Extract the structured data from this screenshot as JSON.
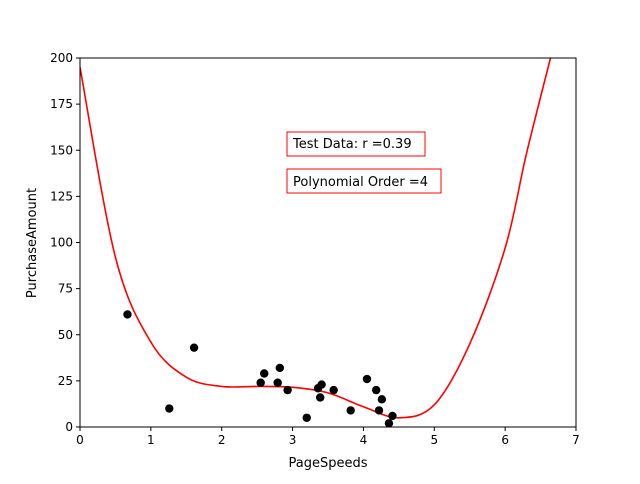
{
  "chart_data": {
    "type": "scatter",
    "xlabel": "PageSpeeds",
    "ylabel": "PurchaseAmount",
    "xlim": [
      0,
      7
    ],
    "ylim": [
      0,
      200
    ],
    "xticks": [
      0,
      1,
      2,
      3,
      4,
      5,
      6,
      7
    ],
    "yticks": [
      0,
      25,
      50,
      75,
      100,
      125,
      150,
      175,
      200
    ],
    "grid": false,
    "annotations": [
      "Test Data: r =0.39",
      "Polynomial Order =4"
    ],
    "points": [
      {
        "x": 0.67,
        "y": 61
      },
      {
        "x": 1.26,
        "y": 10
      },
      {
        "x": 1.61,
        "y": 43
      },
      {
        "x": 2.55,
        "y": 24
      },
      {
        "x": 2.6,
        "y": 29
      },
      {
        "x": 2.79,
        "y": 24
      },
      {
        "x": 2.82,
        "y": 32
      },
      {
        "x": 2.93,
        "y": 20
      },
      {
        "x": 3.2,
        "y": 5
      },
      {
        "x": 3.36,
        "y": 21
      },
      {
        "x": 3.39,
        "y": 16
      },
      {
        "x": 3.41,
        "y": 23
      },
      {
        "x": 3.58,
        "y": 20
      },
      {
        "x": 3.82,
        "y": 9
      },
      {
        "x": 4.05,
        "y": 26
      },
      {
        "x": 4.18,
        "y": 20
      },
      {
        "x": 4.22,
        "y": 9
      },
      {
        "x": 4.26,
        "y": 15
      },
      {
        "x": 4.36,
        "y": 2
      },
      {
        "x": 4.41,
        "y": 6
      }
    ],
    "fit_curve": {
      "color": "#ff0000",
      "points": [
        {
          "x": 0.0,
          "y": 195
        },
        {
          "x": 0.5,
          "y": 92
        },
        {
          "x": 1.0,
          "y": 46
        },
        {
          "x": 1.5,
          "y": 27
        },
        {
          "x": 2.0,
          "y": 22
        },
        {
          "x": 2.5,
          "y": 22
        },
        {
          "x": 3.0,
          "y": 21.5
        },
        {
          "x": 3.5,
          "y": 18.5
        },
        {
          "x": 4.0,
          "y": 11
        },
        {
          "x": 4.5,
          "y": 5
        },
        {
          "x": 5.0,
          "y": 12
        },
        {
          "x": 5.5,
          "y": 45
        },
        {
          "x": 6.0,
          "y": 97
        },
        {
          "x": 6.3,
          "y": 148
        },
        {
          "x": 6.64,
          "y": 200
        }
      ]
    },
    "point_color": "#000000"
  }
}
